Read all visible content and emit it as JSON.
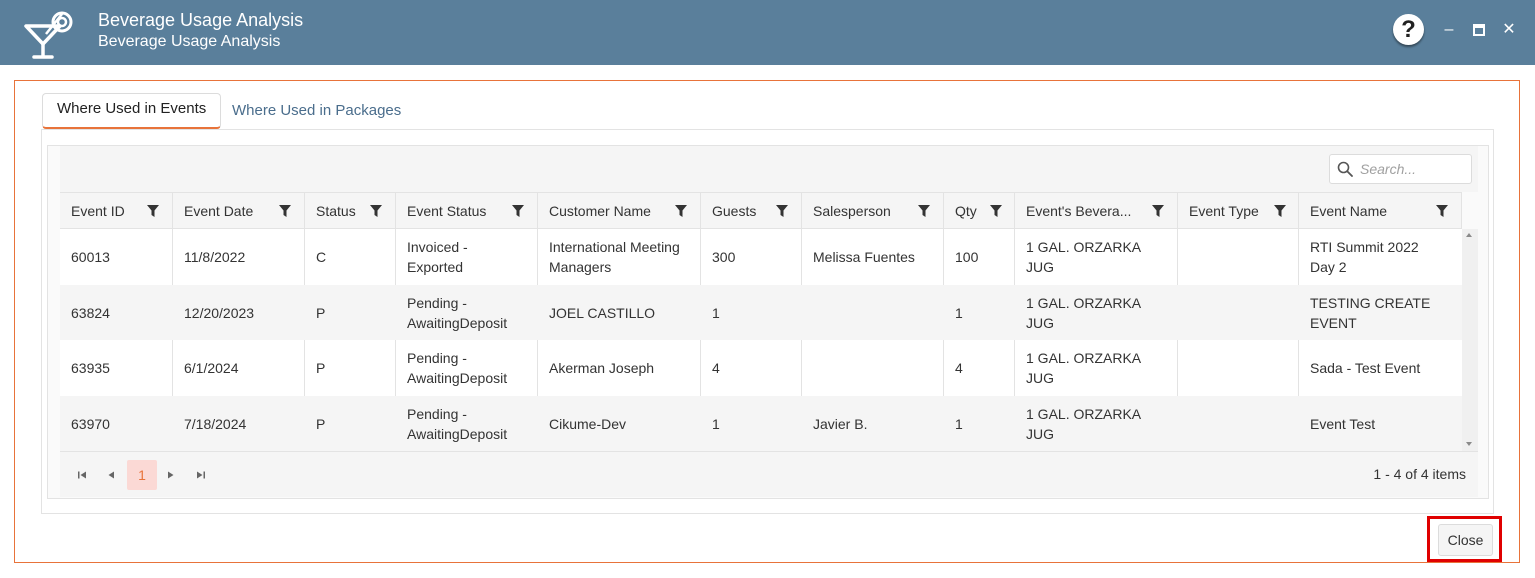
{
  "window": {
    "title": "Beverage Usage Analysis",
    "subtitle": "Beverage Usage Analysis",
    "help_label": "?",
    "minimize_label": "–",
    "maximize_label": "▪",
    "close_label": "✕",
    "titlebar_color": "#5a7f9b",
    "accent_color": "#e8733a"
  },
  "tabs": [
    {
      "label": "Where Used in Events",
      "active": true
    },
    {
      "label": "Where Used in Packages",
      "active": false
    }
  ],
  "search": {
    "placeholder": "Search..."
  },
  "columns": [
    {
      "label": "Event ID"
    },
    {
      "label": "Event Date"
    },
    {
      "label": "Status"
    },
    {
      "label": "Event Status"
    },
    {
      "label": "Customer Name"
    },
    {
      "label": "Guests"
    },
    {
      "label": "Salesperson"
    },
    {
      "label": "Qty"
    },
    {
      "label": "Event's Bevera..."
    },
    {
      "label": "Event Type"
    },
    {
      "label": "Event Name"
    }
  ],
  "rows": [
    [
      "60013",
      "11/8/2022",
      "C",
      "Invoiced -\nExported",
      "International Meeting\nManagers",
      "300",
      "Melissa Fuentes",
      "100",
      "1 GAL. ORZARKA\nJUG",
      "",
      "RTI Summit 2022\nDay 2"
    ],
    [
      "63824",
      "12/20/2023",
      "P",
      "Pending -\nAwaitingDeposit",
      "JOEL CASTILLO",
      "1",
      "",
      "1",
      "1 GAL. ORZARKA\nJUG",
      "",
      "TESTING CREATE\nEVENT"
    ],
    [
      "63935",
      "6/1/2024",
      "P",
      "Pending -\nAwaitingDeposit",
      "Akerman Joseph",
      "4",
      "",
      "4",
      "1 GAL. ORZARKA\nJUG",
      "",
      "Sada - Test Event"
    ],
    [
      "63970",
      "7/18/2024",
      "P",
      "Pending -\nAwaitingDeposit",
      "Cikume-Dev",
      "1",
      "Javier B.",
      "1",
      "1 GAL. ORZARKA\nJUG",
      "",
      "Event Test"
    ]
  ],
  "pager": {
    "first": "⏮",
    "prev": "◀",
    "current_page": "1",
    "next": "▶",
    "last": "⏭",
    "info": "1 - 4 of 4 items"
  },
  "footer": {
    "close_label": "Close"
  },
  "icons": {
    "app": "cocktail-icon",
    "filter": "filter-icon",
    "search": "search-icon"
  }
}
